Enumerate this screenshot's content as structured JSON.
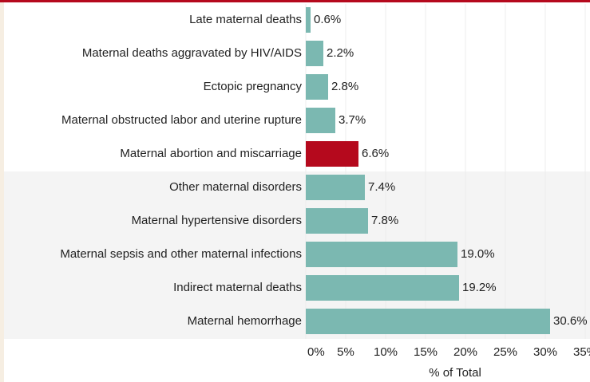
{
  "chart_data": {
    "type": "bar",
    "orientation": "horizontal",
    "categories": [
      "Late maternal deaths",
      "Maternal deaths aggravated by HIV/AIDS",
      "Ectopic pregnancy",
      "Maternal obstructed labor and uterine rupture",
      "Maternal abortion and miscarriage",
      "Other maternal disorders",
      "Maternal hypertensive disorders",
      "Maternal sepsis and other maternal infections",
      "Indirect maternal deaths",
      "Maternal hemorrhage"
    ],
    "values": [
      0.6,
      2.2,
      2.8,
      3.7,
      6.6,
      7.4,
      7.8,
      19.0,
      19.2,
      30.6
    ],
    "value_labels": [
      "0.6%",
      "2.2%",
      "2.8%",
      "3.7%",
      "6.6%",
      "7.4%",
      "7.8%",
      "19.0%",
      "19.2%",
      "30.6%"
    ],
    "colors": [
      "#7bb8b1",
      "#7bb8b1",
      "#7bb8b1",
      "#7bb8b1",
      "#b5091d",
      "#7bb8b1",
      "#7bb8b1",
      "#7bb8b1",
      "#7bb8b1",
      "#7bb8b1"
    ],
    "xlabel": "% of Total",
    "xlim": [
      0,
      35
    ],
    "xticks": [
      {
        "value": 0,
        "label": "0%"
      },
      {
        "value": 5,
        "label": "5%"
      },
      {
        "value": 10,
        "label": "10%"
      },
      {
        "value": 15,
        "label": "15%"
      },
      {
        "value": 20,
        "label": "20%"
      },
      {
        "value": 25,
        "label": "25%"
      },
      {
        "value": 30,
        "label": "30%"
      },
      {
        "value": 35,
        "label": "35%"
      }
    ],
    "grid": true
  }
}
